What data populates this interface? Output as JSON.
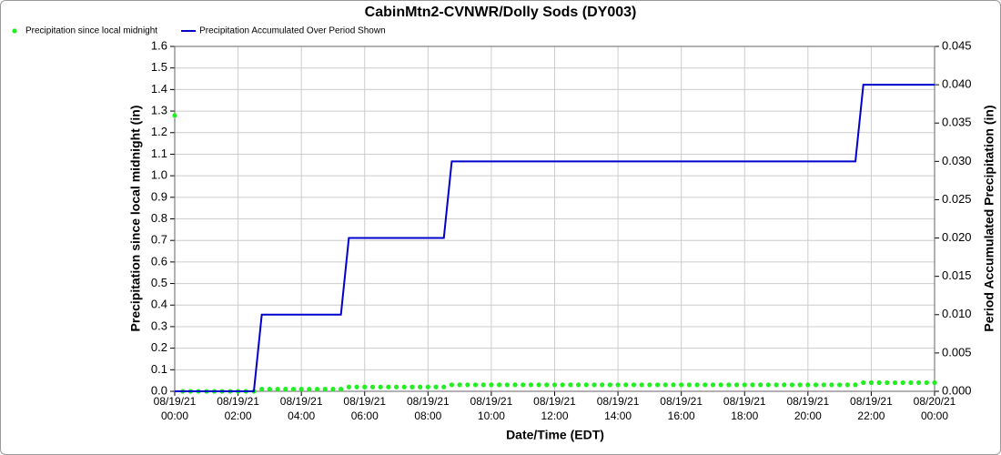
{
  "chart_data": {
    "type": "line",
    "title": "CabinMtn2-CVNWR/Dolly Sods (DY003)",
    "x_label": "Date/Time (EDT)",
    "y_label": "Precipitation since local midnight (in)",
    "y2_label": "Period Accumulated Precipitation (in)",
    "grid": true,
    "legend": "top-left",
    "x": [
      "08/19/21 00:00",
      "08/19/21 00:15",
      "08/19/21 00:30",
      "08/19/21 00:45",
      "08/19/21 01:00",
      "08/19/21 01:15",
      "08/19/21 01:30",
      "08/19/21 01:45",
      "08/19/21 02:00",
      "08/19/21 02:15",
      "08/19/21 02:30",
      "08/19/21 02:45",
      "08/19/21 03:00",
      "08/19/21 03:15",
      "08/19/21 03:30",
      "08/19/21 03:45",
      "08/19/21 04:00",
      "08/19/21 04:15",
      "08/19/21 04:30",
      "08/19/21 04:45",
      "08/19/21 05:00",
      "08/19/21 05:15",
      "08/19/21 05:30",
      "08/19/21 05:45",
      "08/19/21 06:00",
      "08/19/21 06:15",
      "08/19/21 06:30",
      "08/19/21 06:45",
      "08/19/21 07:00",
      "08/19/21 07:15",
      "08/19/21 07:30",
      "08/19/21 07:45",
      "08/19/21 08:00",
      "08/19/21 08:15",
      "08/19/21 08:30",
      "08/19/21 08:45",
      "08/19/21 09:00",
      "08/19/21 09:15",
      "08/19/21 09:30",
      "08/19/21 09:45",
      "08/19/21 10:00",
      "08/19/21 10:15",
      "08/19/21 10:30",
      "08/19/21 10:45",
      "08/19/21 11:00",
      "08/19/21 11:15",
      "08/19/21 11:30",
      "08/19/21 11:45",
      "08/19/21 12:00",
      "08/19/21 12:15",
      "08/19/21 12:30",
      "08/19/21 12:45",
      "08/19/21 13:00",
      "08/19/21 13:15",
      "08/19/21 13:30",
      "08/19/21 13:45",
      "08/19/21 14:00",
      "08/19/21 14:15",
      "08/19/21 14:30",
      "08/19/21 14:45",
      "08/19/21 15:00",
      "08/19/21 15:15",
      "08/19/21 15:30",
      "08/19/21 15:45",
      "08/19/21 16:00",
      "08/19/21 16:15",
      "08/19/21 16:30",
      "08/19/21 16:45",
      "08/19/21 17:00",
      "08/19/21 17:15",
      "08/19/21 17:30",
      "08/19/21 17:45",
      "08/19/21 18:00",
      "08/19/21 18:15",
      "08/19/21 18:30",
      "08/19/21 18:45",
      "08/19/21 19:00",
      "08/19/21 19:15",
      "08/19/21 19:30",
      "08/19/21 19:45",
      "08/19/21 20:00",
      "08/19/21 20:15",
      "08/19/21 20:30",
      "08/19/21 20:45",
      "08/19/21 21:00",
      "08/19/21 21:15",
      "08/19/21 21:30",
      "08/19/21 21:45",
      "08/19/21 22:00",
      "08/19/21 22:15",
      "08/19/21 22:30",
      "08/19/21 22:45",
      "08/19/21 23:00",
      "08/19/21 23:15",
      "08/19/21 23:30",
      "08/19/21 23:45",
      "08/20/21 00:00"
    ],
    "series": [
      {
        "name": "Precipitation since local midnight",
        "color": "#22ee22",
        "style": "dots",
        "axis": "y",
        "values": [
          1.28,
          0,
          0,
          0,
          0,
          0,
          0,
          0,
          0,
          0,
          0,
          0.01,
          0.01,
          0.01,
          0.01,
          0.01,
          0.01,
          0.01,
          0.01,
          0.01,
          0.01,
          0.01,
          0.02,
          0.02,
          0.02,
          0.02,
          0.02,
          0.02,
          0.02,
          0.02,
          0.02,
          0.02,
          0.02,
          0.02,
          0.02,
          0.03,
          0.03,
          0.03,
          0.03,
          0.03,
          0.03,
          0.03,
          0.03,
          0.03,
          0.03,
          0.03,
          0.03,
          0.03,
          0.03,
          0.03,
          0.03,
          0.03,
          0.03,
          0.03,
          0.03,
          0.03,
          0.03,
          0.03,
          0.03,
          0.03,
          0.03,
          0.03,
          0.03,
          0.03,
          0.03,
          0.03,
          0.03,
          0.03,
          0.03,
          0.03,
          0.03,
          0.03,
          0.03,
          0.03,
          0.03,
          0.03,
          0.03,
          0.03,
          0.03,
          0.03,
          0.03,
          0.03,
          0.03,
          0.03,
          0.03,
          0.03,
          0.03,
          0.04,
          0.04,
          0.04,
          0.04,
          0.04,
          0.04,
          0.04,
          0.04,
          0.04,
          0.04
        ]
      },
      {
        "name": "Precipitation Accumulated Over Period Shown",
        "color": "#0000cc",
        "style": "line",
        "axis": "y2",
        "values": [
          0,
          0,
          0,
          0,
          0,
          0,
          0,
          0,
          0,
          0,
          0,
          0.01,
          0.01,
          0.01,
          0.01,
          0.01,
          0.01,
          0.01,
          0.01,
          0.01,
          0.01,
          0.01,
          0.02,
          0.02,
          0.02,
          0.02,
          0.02,
          0.02,
          0.02,
          0.02,
          0.02,
          0.02,
          0.02,
          0.02,
          0.02,
          0.03,
          0.03,
          0.03,
          0.03,
          0.03,
          0.03,
          0.03,
          0.03,
          0.03,
          0.03,
          0.03,
          0.03,
          0.03,
          0.03,
          0.03,
          0.03,
          0.03,
          0.03,
          0.03,
          0.03,
          0.03,
          0.03,
          0.03,
          0.03,
          0.03,
          0.03,
          0.03,
          0.03,
          0.03,
          0.03,
          0.03,
          0.03,
          0.03,
          0.03,
          0.03,
          0.03,
          0.03,
          0.03,
          0.03,
          0.03,
          0.03,
          0.03,
          0.03,
          0.03,
          0.03,
          0.03,
          0.03,
          0.03,
          0.03,
          0.03,
          0.03,
          0.03,
          0.04,
          0.04,
          0.04,
          0.04,
          0.04,
          0.04,
          0.04,
          0.04,
          0.04,
          0.04
        ]
      }
    ],
    "xlim": [
      "08/19/21 00:00",
      "08/20/21 00:00"
    ],
    "xticks": [
      "08/19/21 00:00",
      "08/19/21 02:00",
      "08/19/21 04:00",
      "08/19/21 06:00",
      "08/19/21 08:00",
      "08/19/21 10:00",
      "08/19/21 12:00",
      "08/19/21 14:00",
      "08/19/21 16:00",
      "08/19/21 18:00",
      "08/19/21 20:00",
      "08/19/21 22:00",
      "08/20/21 00:00"
    ],
    "ylim": [
      0,
      1.6
    ],
    "yticks": [
      {
        "value": 0,
        "label": "0.0"
      },
      0.1,
      0.2,
      0.3,
      0.4,
      0.5,
      0.6,
      0.7,
      0.8,
      0.9,
      {
        "value": 1,
        "label": "1.0"
      },
      1.1,
      1.2,
      1.3,
      1.4,
      1.5,
      1.6
    ],
    "y2lim": [
      0,
      0.045
    ],
    "y2ticks": [
      {
        "value": 0,
        "label": "0.000"
      },
      {
        "value": 0.005,
        "label": "0.005"
      },
      {
        "value": 0.01,
        "label": "0.010"
      },
      {
        "value": 0.015,
        "label": "0.015"
      },
      {
        "value": 0.02,
        "label": "0.020"
      },
      {
        "value": 0.025,
        "label": "0.025"
      },
      {
        "value": 0.03,
        "label": "0.030"
      },
      {
        "value": 0.035,
        "label": "0.035"
      },
      {
        "value": 0.04,
        "label": "0.040"
      },
      {
        "value": 0.045,
        "label": "0.045"
      }
    ]
  }
}
